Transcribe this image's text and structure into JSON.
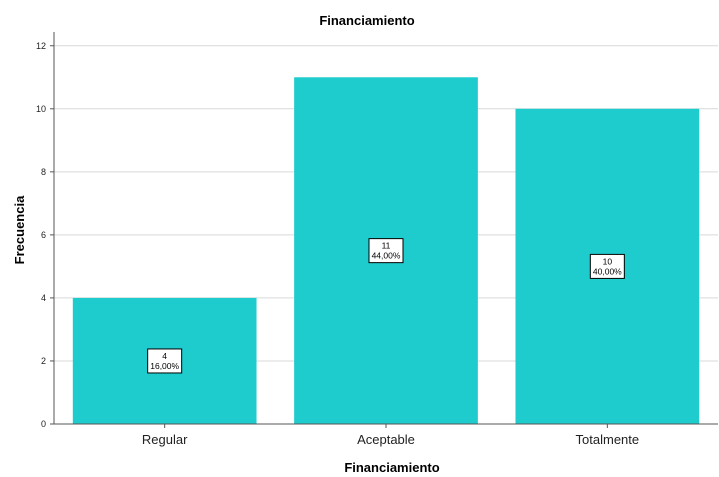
{
  "chart_data": {
    "type": "bar",
    "title": "Financiamiento",
    "xlabel": "Financiamiento",
    "ylabel": "Frecuencia",
    "categories": [
      "Regular",
      "Aceptable",
      "Totalmente"
    ],
    "values": [
      4,
      11,
      10
    ],
    "data_labels": [
      {
        "count": "4",
        "percent": "16,00%"
      },
      {
        "count": "11",
        "percent": "44,00%"
      },
      {
        "count": "10",
        "percent": "40,00%"
      }
    ],
    "ylim": [
      0,
      12.5
    ],
    "yticks": [
      0,
      2,
      4,
      6,
      8,
      10,
      12
    ],
    "grid": true,
    "colors": {
      "bar": "#1ecbcd",
      "grid": "#d9d9d9",
      "axis": "#555555"
    }
  }
}
